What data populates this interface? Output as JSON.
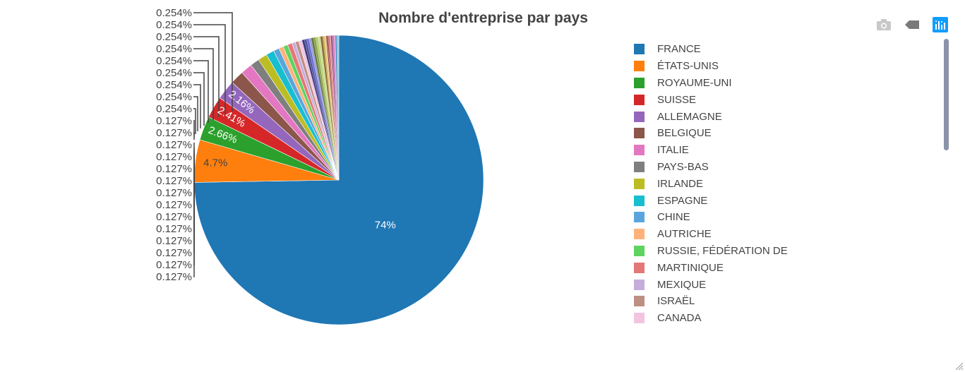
{
  "chart_data": {
    "type": "pie",
    "title": "Nombre d'entreprise par pays",
    "slices": [
      {
        "label": "FRANCE",
        "value": 74,
        "color": "#1f77b4",
        "text": "74%"
      },
      {
        "label": "ÉTATS-UNIS",
        "value": 4.7,
        "color": "#ff7f0e",
        "text": "4.7%"
      },
      {
        "label": "ROYAUME-UNI",
        "value": 2.66,
        "color": "#2ca02c",
        "text": "2.66%"
      },
      {
        "label": "SUISSE",
        "value": 2.41,
        "color": "#d62728",
        "text": "2.41%"
      },
      {
        "label": "ALLEMAGNE",
        "value": 2.16,
        "color": "#9467bd",
        "text": "2.16%"
      },
      {
        "label": "BELGIQUE",
        "value": 1.52,
        "color": "#8c564b"
      },
      {
        "label": "ITALIE",
        "value": 1.27,
        "color": "#e377c2"
      },
      {
        "label": "PAYS-BAS",
        "value": 1.02,
        "color": "#7f7f7f"
      },
      {
        "label": "IRLANDE",
        "value": 1.02,
        "color": "#bcbd22"
      },
      {
        "label": "ESPAGNE",
        "value": 0.889,
        "color": "#17becf"
      },
      {
        "label": "CHINE",
        "value": 0.635,
        "color": "#5aa6dc"
      },
      {
        "label": "AUTRICHE",
        "value": 0.508,
        "color": "#ffb27a"
      },
      {
        "label": "RUSSIE, FÉDÉRATION DE",
        "value": 0.508,
        "color": "#5fd35f"
      },
      {
        "label": "MARTINIQUE",
        "value": 0.508,
        "color": "#e47878"
      },
      {
        "label": "MEXIQUE",
        "value": 0.381,
        "color": "#c6acdb"
      },
      {
        "label": "ISRAËL",
        "value": 0.381,
        "color": "#be8f85"
      },
      {
        "label": "CANADA",
        "value": 0.381,
        "color": "#f2c4e0"
      }
    ],
    "small_slice_labels": [
      "0.254%",
      "0.254%",
      "0.254%",
      "0.254%",
      "0.254%",
      "0.254%",
      "0.254%",
      "0.254%",
      "0.254%",
      "0.127%",
      "0.127%",
      "0.127%",
      "0.127%",
      "0.127%",
      "0.127%",
      "0.127%",
      "0.127%",
      "0.127%",
      "0.127%",
      "0.127%",
      "0.127%",
      "0.127%",
      "0.127%"
    ],
    "small_slice_values": [
      0.254,
      0.254,
      0.254,
      0.254,
      0.254,
      0.254,
      0.254,
      0.254,
      0.254,
      0.127,
      0.127,
      0.127,
      0.127,
      0.127,
      0.127,
      0.127,
      0.127,
      0.127,
      0.127,
      0.127,
      0.127,
      0.127,
      0.127
    ],
    "small_slice_colors": [
      "#393b79",
      "#5254a3",
      "#6b6ecf",
      "#9c9ede",
      "#637939",
      "#8ca252",
      "#b5cf6b",
      "#cedb9c",
      "#8c6d31",
      "#bd9e39",
      "#e7ba52",
      "#e7cb94",
      "#843c39",
      "#ad494a",
      "#d6616b",
      "#e7969c",
      "#7b4173",
      "#a55194",
      "#ce6dbd",
      "#de9ed6",
      "#3182bd",
      "#6baed6",
      "#9ecae1"
    ],
    "legend_placement": "right"
  },
  "modebar": {
    "icons": [
      "camera-icon",
      "tag-icon",
      "plotly-logo-icon"
    ]
  }
}
